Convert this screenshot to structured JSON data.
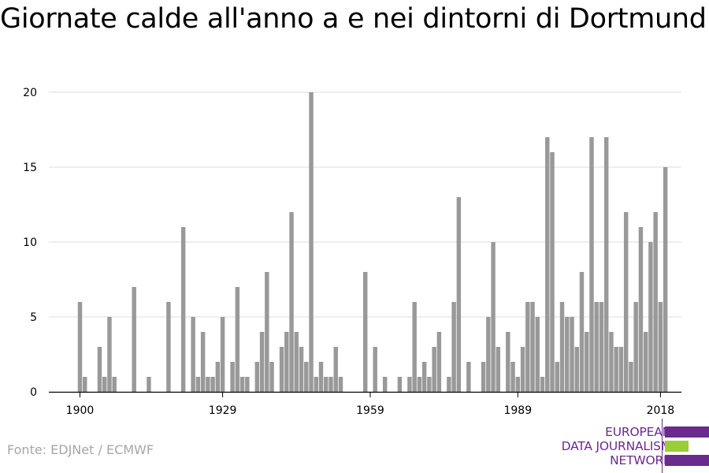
{
  "chart_data": {
    "type": "bar",
    "title": "Giornate calde all'anno a e nei dintorni di Dortmund",
    "xlabel": "",
    "ylabel": "",
    "x_start": 1900,
    "x_ticks": [
      "1900",
      "1929",
      "1959",
      "1989",
      "2018"
    ],
    "y_ticks": [
      "0",
      "5",
      "10",
      "15",
      "20"
    ],
    "ylim": [
      0,
      20
    ],
    "grid": true,
    "bar_color": "#999999",
    "values": [
      6,
      1,
      0,
      0,
      3,
      1,
      5,
      1,
      0,
      0,
      0,
      7,
      0,
      0,
      1,
      0,
      0,
      0,
      6,
      0,
      0,
      11,
      0,
      5,
      1,
      4,
      1,
      1,
      2,
      5,
      0,
      2,
      7,
      1,
      1,
      0,
      2,
      4,
      8,
      2,
      0,
      3,
      4,
      12,
      4,
      3,
      2,
      20,
      1,
      2,
      1,
      1,
      3,
      1,
      0,
      0,
      0,
      0,
      8,
      0,
      3,
      0,
      1,
      0,
      0,
      1,
      0,
      1,
      6,
      1,
      2,
      1,
      3,
      4,
      0,
      1,
      6,
      13,
      0,
      2,
      0,
      0,
      2,
      5,
      10,
      3,
      0,
      4,
      2,
      1,
      3,
      6,
      6,
      5,
      1,
      17,
      16,
      2,
      6,
      5,
      5,
      3,
      8,
      4,
      17,
      6,
      6,
      17,
      4,
      3,
      3,
      12,
      2,
      6,
      11,
      4,
      10,
      12,
      6,
      15
    ]
  },
  "source": "Fonte: EDJNet / ECMWF",
  "logo": {
    "line1": "EUROPEAN",
    "line2": "DATA JOURNALISM",
    "line3": "NETWORK",
    "colors": {
      "purple": "#6a2a8e",
      "green": "#9ccc3c"
    }
  }
}
